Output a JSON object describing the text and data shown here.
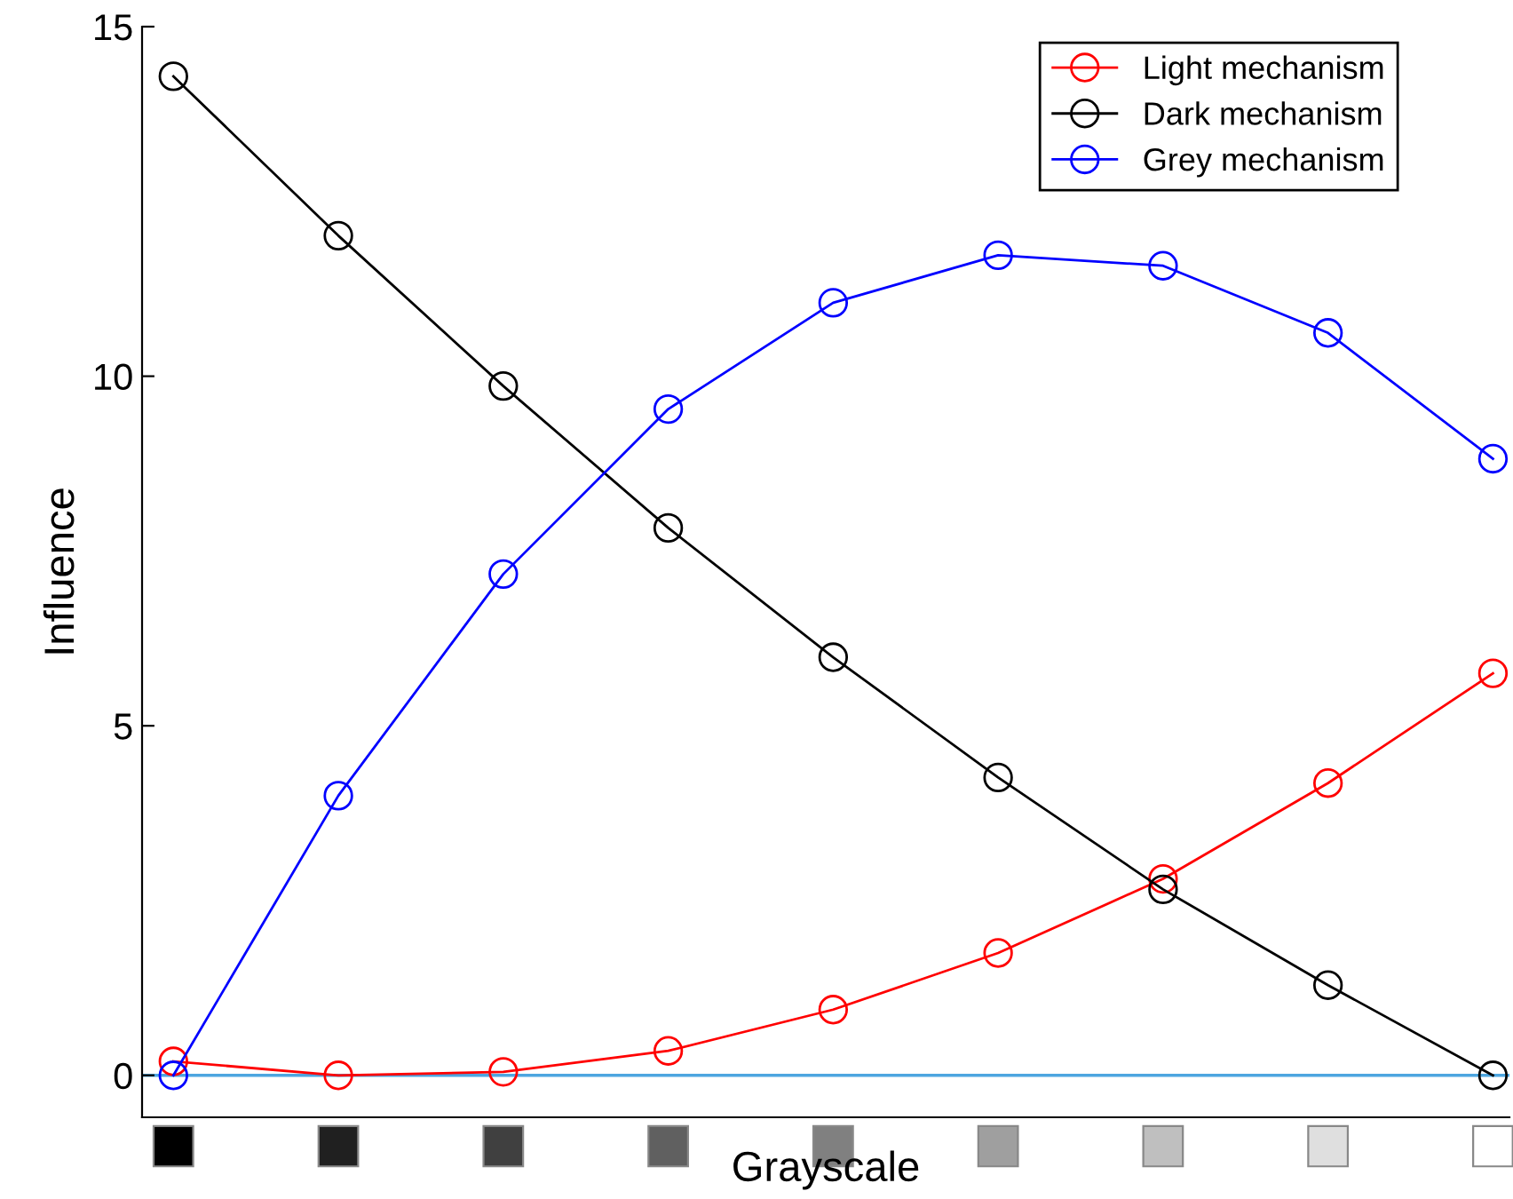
{
  "chart_data": {
    "type": "line",
    "xlabel": "Grayscale",
    "ylabel": "Influence",
    "categories": [
      null,
      null,
      null,
      null,
      null,
      null,
      null,
      null,
      null
    ],
    "series": [
      {
        "name": "Light mechanism",
        "color": "#ff0000",
        "values": [
          0.2,
          0,
          0.05,
          0.35,
          0.94,
          1.75,
          2.81,
          4.18,
          5.75
        ]
      },
      {
        "name": "Dark mechanism",
        "color": "#000000",
        "values": [
          14.29,
          12.01,
          9.86,
          7.83,
          5.98,
          4.26,
          2.66,
          1.29,
          0
        ]
      },
      {
        "name": "Grey mechanism",
        "color": "#0000ff",
        "values": [
          0,
          4.0,
          7.17,
          9.53,
          11.05,
          11.73,
          11.58,
          10.62,
          8.82
        ]
      }
    ],
    "ylim": [
      -0.6,
      15
    ],
    "yticks": [
      0,
      5,
      10,
      15
    ],
    "ref_lines": [
      {
        "axis": "y",
        "value": 0,
        "color": "#4da6e0"
      }
    ],
    "marker": "circle",
    "line_style": "solid",
    "grid": false,
    "legend": "top right"
  }
}
